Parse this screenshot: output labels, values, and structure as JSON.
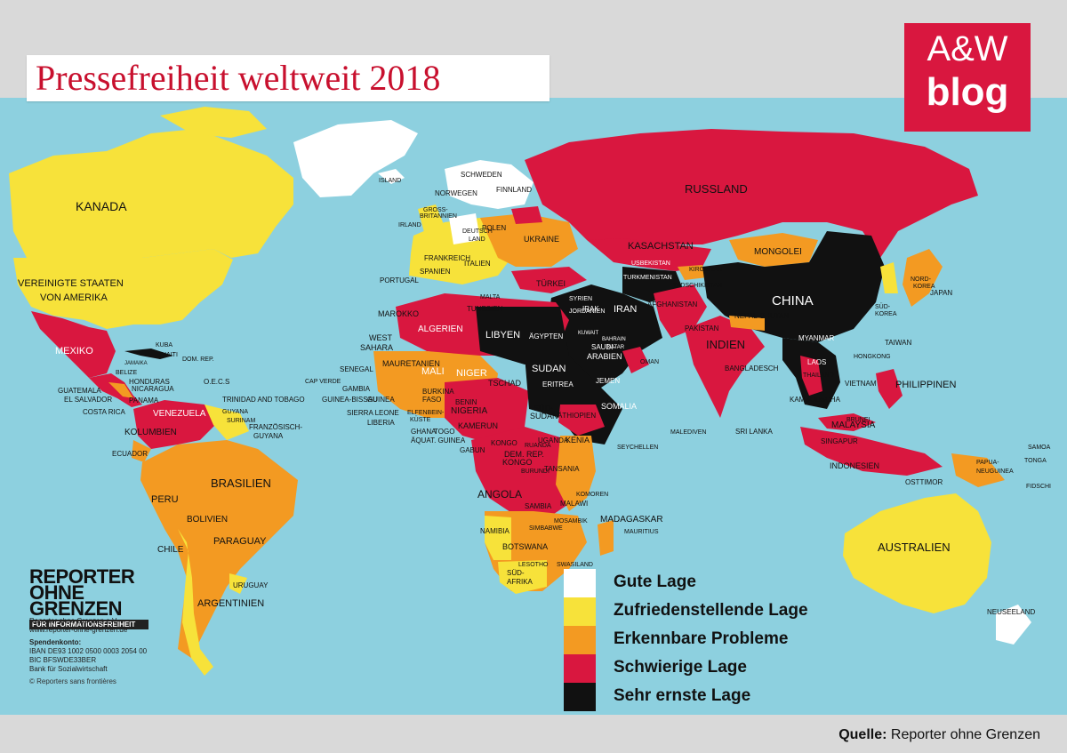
{
  "title": "Pressefreiheit weltweit 2018",
  "brand": {
    "top": "A&W",
    "bottom": "blog",
    "color": "#d9173f"
  },
  "source": {
    "label": "Quelle:",
    "text": "Reporter ohne Grenzen"
  },
  "legend": [
    {
      "label": "Gute Lage",
      "color": "#ffffff"
    },
    {
      "label": "Zufriedenstellende Lage",
      "color": "#f7e23a"
    },
    {
      "label": "Erkennbare Probleme",
      "color": "#f39a22"
    },
    {
      "label": "Schwierige Lage",
      "color": "#d9173f"
    },
    {
      "label": "Sehr ernste Lage",
      "color": "#111111"
    }
  ],
  "organization": {
    "logo_line1": "REPORTER",
    "logo_line2": "OHNE GRENZEN",
    "logo_line3": "FÜR INFORMATIONSFREIHEIT",
    "contact": [
      "Reporter ohne Grenzen e.V.",
      "www.reporter-ohne-grenzen.de"
    ],
    "bank_title": "Spendenkonto:",
    "bank": [
      "IBAN DE93 1002 0500 0003 2054 00",
      "BIC BFSWDE33BER",
      "Bank für Sozialwirtschaft"
    ],
    "copyright": "© Reporters sans frontières"
  },
  "map_labels": [
    "KANADA",
    "VEREINIGTE STAATEN",
    "VON AMERIKA",
    "MEXIKO",
    "KUBA",
    "HAITI",
    "DOM. REP.",
    "JAMAIKA",
    "BELIZE",
    "HONDURAS",
    "NICARAGUA",
    "GUATEMALA",
    "EL SALVADOR",
    "COSTA RICA",
    "PANAMA",
    "O.E.C.S",
    "TRINIDAD AND TOBAGO",
    "VENEZUELA",
    "GUYANA",
    "SURINAM",
    "FRANZÖSISCH-",
    "GUYANA",
    "KOLUMBIEN",
    "ECUADOR",
    "PERU",
    "BRASILIEN",
    "BOLIVIEN",
    "PARAGUAY",
    "CHILE",
    "URUGUAY",
    "ARGENTINIEN",
    "ISLAND",
    "SCHWEDEN",
    "NORWEGEN",
    "FINNLAND",
    "GROSS-",
    "BRITANNIEN",
    "IRLAND",
    "DEUTSCH",
    "LAND",
    "POLEN",
    "UKRAINE",
    "FRANKREICH",
    "SPANIEN",
    "PORTUGAL",
    "ITALIEN",
    "TÜRKEI",
    "MALTA",
    "TUNESIEN",
    "MAROKKO",
    "ALGERIEN",
    "LIBYEN",
    "ÄGYPTEN",
    "WEST",
    "SAHARA",
    "MAURETANIEN",
    "SENEGAL",
    "CAP VERDE",
    "GAMBIA",
    "GUINEA-BISSAU",
    "GUINEA",
    "SIERRA LEONE",
    "LIBERIA",
    "MALI",
    "NIGER",
    "BURKINA",
    "FASO",
    "ELFENBEIN-",
    "KÜSTE",
    "GHANA",
    "TOGO",
    "BENIN",
    "NIGERIA",
    "TSCHAD",
    "SUDAN",
    "SÜD-",
    "SUDAN",
    "ERITREA",
    "ÄTHIOPIEN",
    "SOMALIA",
    "KAMERUN",
    "ÄQUAT. GUINEA",
    "GABUN",
    "KONGO",
    "DEM. REP.",
    "KONGO",
    "UGANDA",
    "KENIA",
    "RUANDA",
    "BURUNDI",
    "TANSANIA",
    "ANGOLA",
    "SAMBIA",
    "MALAWI",
    "MOSAMBIK",
    "SIMBABWE",
    "NAMIBIA",
    "BOTSWANA",
    "SÜD-",
    "AFRIKA",
    "LESOTHO",
    "SWASILAND",
    "MADAGASKAR",
    "KOMOREN",
    "MAURITIUS",
    "SEYCHELLEN",
    "RUSSLAND",
    "KASACHSTAN",
    "MONGOLEI",
    "CHINA",
    "USBEKISTAN",
    "TURKMENISTAN",
    "KIRGISTAN",
    "TADSCHIKISTAN",
    "AFGHANISTAN",
    "PAKISTAN",
    "INDIEN",
    "NEPAL",
    "BHUTAN",
    "BANGLADESCH",
    "MYANMAR",
    "LAOS",
    "THAILAND",
    "KAMBODSCHA",
    "VIETNAM",
    "SYRIEN",
    "IRAK",
    "IRAN",
    "JORDANIEN",
    "SAUDI-",
    "ARABIEN",
    "JEMEN",
    "OMAN",
    "KUWAIT",
    "BAHRAIN",
    "KATAR",
    "SRI LANKA",
    "MALEDIVEN",
    "NORD-",
    "KOREA",
    "SÜD-",
    "KOREA",
    "JAPAN",
    "TAIWAN",
    "HONGKONG",
    "PHILIPPINEN",
    "MALAYSIA",
    "BRUNEI",
    "SINGAPUR",
    "INDONESIEN",
    "OSTTIMOR",
    "PAPUA-",
    "NEUGUINEA",
    "AUSTRALIEN",
    "NEUSEELAND",
    "SAMOA",
    "TONGA",
    "FIDSCHI"
  ]
}
